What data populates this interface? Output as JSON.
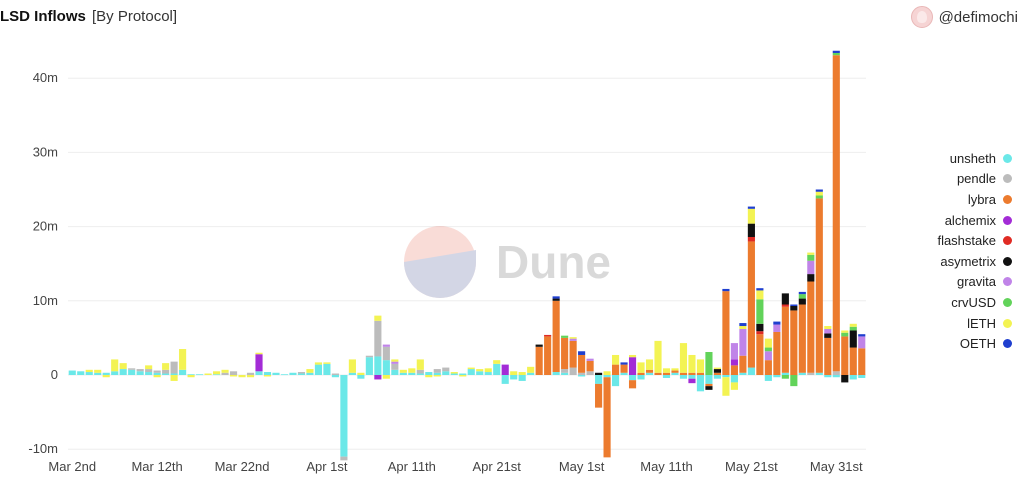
{
  "header": {
    "title": "LSD Inflows",
    "subtitle": "[By Protocol]",
    "author": "@defimochi"
  },
  "watermark": "Dune",
  "colors": {
    "unsheth": "#6be8e8",
    "pendle": "#bcbcbc",
    "lybra": "#ec7b2e",
    "alchemix": "#a32cd6",
    "flashstake": "#e02b24",
    "asymetrix": "#111111",
    "gravita": "#c084e8",
    "crvUSD": "#62d35a",
    "lETH": "#f3f353",
    "OETH": "#1f3fcf",
    "grid": "#eeeeee",
    "axis_text": "#444444"
  },
  "chart_data": {
    "type": "bar",
    "stacked": true,
    "title": "LSD Inflows",
    "subtitle": "[By Protocol]",
    "xlabel": "",
    "ylabel": "",
    "ylim": [
      -10000000,
      44000000
    ],
    "yticks": [
      {
        "value": 40000000,
        "label": "40m"
      },
      {
        "value": 30000000,
        "label": "30m"
      },
      {
        "value": 20000000,
        "label": "20m"
      },
      {
        "value": 10000000,
        "label": "10m"
      },
      {
        "value": 0,
        "label": "0"
      },
      {
        "value": -10000000,
        "label": "-10m"
      }
    ],
    "xticks": [
      {
        "index": 0,
        "label": "Mar 2nd"
      },
      {
        "index": 10,
        "label": "Mar 12th"
      },
      {
        "index": 20,
        "label": "Mar 22nd"
      },
      {
        "index": 30,
        "label": "Apr 1st"
      },
      {
        "index": 40,
        "label": "Apr 11th"
      },
      {
        "index": 50,
        "label": "Apr 21st"
      },
      {
        "index": 60,
        "label": "May 1st"
      },
      {
        "index": 70,
        "label": "May 11th"
      },
      {
        "index": 80,
        "label": "May 21st"
      },
      {
        "index": 90,
        "label": "May 31st"
      }
    ],
    "grid": true,
    "legend_position": "right",
    "series_order": [
      "unsheth",
      "pendle",
      "lybra",
      "alchemix",
      "flashstake",
      "asymetrix",
      "gravita",
      "crvUSD",
      "lETH",
      "OETH"
    ],
    "days": [
      {
        "date": "Mar 1",
        "unsheth": 0.6
      },
      {
        "date": "Mar 2",
        "unsheth": 0.5
      },
      {
        "date": "Mar 3",
        "unsheth": 0.4,
        "lETH": 0.3
      },
      {
        "date": "Mar 4",
        "unsheth": 0.3,
        "lETH": 0.4
      },
      {
        "date": "Mar 5",
        "unsheth": 0.3,
        "lETH": -0.3
      },
      {
        "date": "Mar 6",
        "unsheth": 0.5,
        "lETH": 1.6
      },
      {
        "date": "Mar 7",
        "unsheth": 0.8,
        "lETH": 0.8
      },
      {
        "date": "Mar 8",
        "unsheth": 0.7,
        "pendle": 0.2
      },
      {
        "date": "Mar 9",
        "unsheth": 0.5,
        "pendle": 0.3
      },
      {
        "date": "Mar 10",
        "unsheth": 0.4,
        "pendle": 0.4,
        "lETH": 0.5
      },
      {
        "date": "Mar 11",
        "unsheth": 0.3,
        "pendle": 0.3,
        "lETH": -0.3
      },
      {
        "date": "Mar 12",
        "unsheth": 0.2,
        "pendle": 0.5,
        "lETH": 0.9
      },
      {
        "date": "Mar 13",
        "unsheth": 0.2,
        "pendle": 1.6,
        "lETH": -0.8
      },
      {
        "date": "Mar 14",
        "unsheth": 0.7,
        "lETH": 2.8
      },
      {
        "date": "Mar 15",
        "unsheth": 0.1,
        "lETH": -0.3
      },
      {
        "date": "Mar 16",
        "unsheth": 0.1
      },
      {
        "date": "Mar 17",
        "lETH": 0.2
      },
      {
        "date": "Mar 18",
        "unsheth": 0.1,
        "lETH": 0.4
      },
      {
        "date": "Mar 19",
        "pendle": 0.3,
        "lETH": 0.4
      },
      {
        "date": "Mar 20",
        "pendle": 0.5,
        "lETH": -0.2
      },
      {
        "date": "Mar 21",
        "lETH": -0.3
      },
      {
        "date": "Mar 22",
        "pendle": 0.3,
        "lETH": -0.3
      },
      {
        "date": "Mar 23",
        "unsheth": 0.5,
        "alchemix": 2.3,
        "lETH": 0.2
      },
      {
        "date": "Mar 24",
        "unsheth": 0.4,
        "lETH": -0.2
      },
      {
        "date": "Mar 25",
        "unsheth": 0.3
      },
      {
        "date": "Mar 26",
        "unsheth": 0.1
      },
      {
        "date": "Mar 27",
        "unsheth": 0.3
      },
      {
        "date": "Mar 28",
        "unsheth": 0.2,
        "pendle": 0.2
      },
      {
        "date": "Mar 29",
        "unsheth": 0.3,
        "lETH": 0.5
      },
      {
        "date": "Mar 30",
        "unsheth": 1.4,
        "lETH": 0.3
      },
      {
        "date": "Mar 31",
        "unsheth": 1.5,
        "lETH": 0.2
      },
      {
        "date": "Apr 1",
        "unsheth": -0.3,
        "pendle": 0.2
      },
      {
        "date": "Apr 2",
        "unsheth": -11.0,
        "pendle": -0.5
      },
      {
        "date": "Apr 3",
        "unsheth": 0.3,
        "lETH": 1.8
      },
      {
        "date": "Apr 4",
        "unsheth": -0.5,
        "lETH": 0.3
      },
      {
        "date": "Apr 5",
        "unsheth": 2.4,
        "pendle": 0.2
      },
      {
        "date": "Apr 6",
        "unsheth": 2.5,
        "pendle": 4.8,
        "alchemix": -0.6,
        "lETH": 0.7
      },
      {
        "date": "Apr 7",
        "unsheth": 2.0,
        "pendle": 1.8,
        "gravita": 0.3,
        "lETH": -0.5
      },
      {
        "date": "Apr 8",
        "unsheth": 0.7,
        "pendle": 0.8,
        "gravita": 0.3,
        "lETH": 0.3
      },
      {
        "date": "Apr 9",
        "unsheth": 0.3,
        "lETH": 0.4
      },
      {
        "date": "Apr 10",
        "unsheth": 0.3,
        "lETH": 0.6
      },
      {
        "date": "Apr 11",
        "unsheth": 0.2,
        "pendle": 0.5,
        "lETH": 1.4
      },
      {
        "date": "Apr 12",
        "unsheth": 0.4,
        "lETH": -0.3
      },
      {
        "date": "Apr 13",
        "unsheth": 0.3,
        "pendle": 0.5,
        "lETH": -0.2
      },
      {
        "date": "Apr 14",
        "unsheth": 0.5,
        "pendle": 0.5
      },
      {
        "date": "Apr 15",
        "unsheth": 0.2,
        "lETH": 0.2
      },
      {
        "date": "Apr 16",
        "unsheth": 0.2,
        "lETH": -0.2
      },
      {
        "date": "Apr 17",
        "unsheth": 0.8,
        "lETH": 0.2
      },
      {
        "date": "Apr 18",
        "unsheth": 0.5,
        "lETH": 0.3
      },
      {
        "date": "Apr 19",
        "unsheth": 0.4,
        "lETH": 0.5
      },
      {
        "date": "Apr 20",
        "unsheth": 1.5,
        "lETH": 0.5
      },
      {
        "date": "Apr 21",
        "unsheth": -1.2,
        "alchemix": 1.4
      },
      {
        "date": "Apr 22",
        "unsheth": -0.6,
        "lETH": 0.5
      },
      {
        "date": "Apr 23",
        "unsheth": -0.8,
        "lETH": 0.4
      },
      {
        "date": "Apr 24",
        "unsheth": 0.3,
        "lETH": 0.8
      },
      {
        "date": "Apr 25",
        "lybra": 3.8,
        "asymetrix": 0.3
      },
      {
        "date": "Apr 26",
        "lybra": 5.2,
        "flashstake": 0.2
      },
      {
        "date": "Apr 27",
        "unsheth": 0.4,
        "lybra": 9.6,
        "OETH": 0.3,
        "asymetrix": 0.3
      },
      {
        "date": "Apr 28",
        "unsheth": 0.3,
        "pendle": 0.5,
        "lybra": 4.2,
        "crvUSD": 0.3
      },
      {
        "date": "Apr 29",
        "pendle": 1.0,
        "lybra": 3.6,
        "gravita": 0.3,
        "lETH": 0.2
      },
      {
        "date": "Apr 30",
        "pendle": 0.3,
        "lybra": 2.4,
        "OETH": 0.5,
        "unsheth": -0.2
      },
      {
        "date": "May 1",
        "pendle": 0.5,
        "lybra": 1.4,
        "gravita": 0.3
      },
      {
        "date": "May 2",
        "unsheth": -1.2,
        "lybra": -3.2,
        "asymetrix": 0.3
      },
      {
        "date": "May 3",
        "unsheth": -0.3,
        "lybra": -10.8,
        "lETH": 0.5
      },
      {
        "date": "May 4",
        "unsheth": -1.5,
        "lybra": 1.4,
        "lETH": 1.3
      },
      {
        "date": "May 5",
        "unsheth": 0.3,
        "lybra": 1.1,
        "OETH": 0.3
      },
      {
        "date": "May 6",
        "unsheth": -0.7,
        "lybra": -1.1,
        "alchemix": 2.4,
        "lETH": 0.3
      },
      {
        "date": "May 7",
        "unsheth": -0.6,
        "lybra": 0.3,
        "lETH": 1.4
      },
      {
        "date": "May 8",
        "unsheth": 0.3,
        "lybra": 0.4,
        "lETH": 1.4
      },
      {
        "date": "May 9",
        "lybra": 0.3,
        "lETH": 4.3
      },
      {
        "date": "May 10",
        "unsheth": -0.4,
        "lybra": 0.3,
        "lETH": 0.6
      },
      {
        "date": "May 11",
        "unsheth": 0.3,
        "lybra": 0.3,
        "lETH": 0.3
      },
      {
        "date": "May 12",
        "unsheth": -0.5,
        "lybra": 0.3,
        "lETH": 4.0
      },
      {
        "date": "May 13",
        "unsheth": -0.5,
        "lybra": 0.3,
        "alchemix": -0.6,
        "lETH": 2.4
      },
      {
        "date": "May 14",
        "unsheth": -2.2,
        "lybra": 0.3,
        "lETH": 1.8
      },
      {
        "date": "May 15",
        "unsheth": -1.2,
        "lybra": -0.3,
        "asymetrix": -0.5,
        "crvUSD": 3.1
      },
      {
        "date": "May 16",
        "unsheth": -0.5,
        "lybra": 0.3,
        "asymetrix": 0.5,
        "lETH": 0.2
      },
      {
        "date": "May 17",
        "unsheth": -0.3,
        "lybra": 11.3,
        "OETH": 0.3,
        "lETH": -2.5
      },
      {
        "date": "May 18",
        "unsheth": -1.0,
        "lybra": 1.3,
        "gravita": 2.2,
        "alchemix": 0.8,
        "lETH": -1.0
      },
      {
        "date": "May 19",
        "unsheth": 0.3,
        "lybra": 2.3,
        "gravita": 3.6,
        "OETH": 0.4,
        "lETH": 0.4
      },
      {
        "date": "May 20",
        "unsheth": 1.0,
        "lybra": 17.0,
        "asymetrix": 1.8,
        "flashstake": 0.6,
        "lETH": 2.0,
        "OETH": 0.3
      },
      {
        "date": "May 21",
        "lybra": 5.5,
        "asymetrix": 1.0,
        "flashstake": 0.4,
        "crvUSD": 3.3,
        "lETH": 1.2,
        "OETH": 0.3
      },
      {
        "date": "May 22",
        "unsheth": -0.8,
        "lybra": 2.0,
        "gravita": 1.2,
        "crvUSD": 0.5,
        "lETH": 1.2
      },
      {
        "date": "May 23",
        "lybra": 5.8,
        "gravita": 1.0,
        "OETH": 0.4,
        "unsheth": -0.3
      },
      {
        "date": "May 24",
        "unsheth": 0.3,
        "lybra": 8.9,
        "asymetrix": 1.5,
        "flashstake": 0.3,
        "crvUSD": -0.5
      },
      {
        "date": "May 25",
        "lybra": 8.7,
        "asymetrix": 0.6,
        "OETH": 0.2,
        "crvUSD": -1.5
      },
      {
        "date": "May 26",
        "unsheth": 0.3,
        "lybra": 9.2,
        "asymetrix": 0.8,
        "crvUSD": 0.6,
        "OETH": 0.3
      },
      {
        "date": "May 27",
        "pendle": 0.3,
        "lybra": 12.3,
        "asymetrix": 1.0,
        "gravita": 1.8,
        "crvUSD": 0.8,
        "lETH": 0.3
      },
      {
        "date": "May 28",
        "unsheth": 0.3,
        "lybra": 23.5,
        "crvUSD": 0.4,
        "lETH": 0.5,
        "OETH": 0.3
      },
      {
        "date": "May 29",
        "unsheth": -0.3,
        "lybra": 5.0,
        "asymetrix": 0.6,
        "gravita": 0.6,
        "lETH": 0.4
      },
      {
        "date": "May 30",
        "pendle": 0.5,
        "lybra": 42.6,
        "crvUSD": 0.3,
        "OETH": 0.3,
        "unsheth": -0.3
      },
      {
        "date": "May 31",
        "lybra": 5.2,
        "crvUSD": 0.5,
        "lETH": 0.3,
        "asymetrix": -1.0
      },
      {
        "date": "Jun 1",
        "lybra": 3.7,
        "asymetrix": 2.3,
        "crvUSD": 0.5,
        "lETH": 0.4,
        "unsheth": -0.6
      },
      {
        "date": "Jun 2",
        "lybra": 3.6,
        "gravita": 1.6,
        "OETH": 0.3,
        "unsheth": -0.4
      }
    ]
  },
  "legend": [
    {
      "label": "unsheth",
      "color": "#6be8e8"
    },
    {
      "label": "pendle",
      "color": "#bcbcbc"
    },
    {
      "label": "lybra",
      "color": "#ec7b2e"
    },
    {
      "label": "alchemix",
      "color": "#a32cd6"
    },
    {
      "label": "flashstake",
      "color": "#e02b24"
    },
    {
      "label": "asymetrix",
      "color": "#111111"
    },
    {
      "label": "gravita",
      "color": "#c084e8"
    },
    {
      "label": "crvUSD",
      "color": "#62d35a"
    },
    {
      "label": "lETH",
      "color": "#f3f353"
    },
    {
      "label": "OETH",
      "color": "#1f3fcf"
    }
  ]
}
